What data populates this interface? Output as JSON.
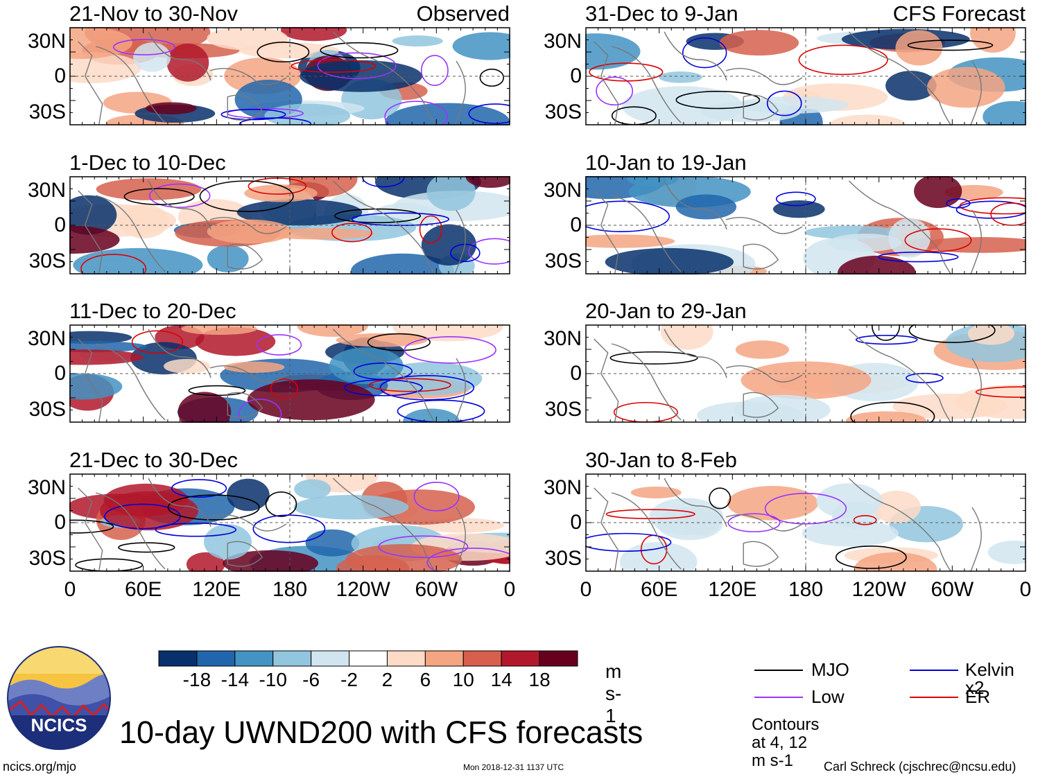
{
  "main_title": "10-day UWND200 with CFS forecasts",
  "footer": {
    "left": "ncics.org/mjo",
    "center": "Mon 2018-12-31 1137 UTC",
    "right": "Carl Schreck (cjschrec@ncsu.edu)"
  },
  "logo_text": "NCICS",
  "column_labels": {
    "observed": "Observed",
    "forecast": "CFS Forecast"
  },
  "panels": [
    {
      "title": "21-Nov to 30-Nov",
      "col": "observed",
      "row": 0
    },
    {
      "title": "1-Dec to 10-Dec",
      "col": "observed",
      "row": 1
    },
    {
      "title": "11-Dec to 20-Dec",
      "col": "observed",
      "row": 2
    },
    {
      "title": "21-Dec to 30-Dec",
      "col": "observed",
      "row": 3
    },
    {
      "title": "31-Dec to 9-Jan",
      "col": "forecast",
      "row": 0
    },
    {
      "title": "10-Jan to 19-Jan",
      "col": "forecast",
      "row": 1
    },
    {
      "title": "20-Jan to 29-Jan",
      "col": "forecast",
      "row": 2
    },
    {
      "title": "30-Jan to 8-Feb",
      "col": "forecast",
      "row": 3
    }
  ],
  "chart_data": {
    "type": "heatmap",
    "variable": "200-hPa zonal wind anomaly",
    "lat_labels": [
      "30N",
      "0",
      "30S"
    ],
    "lon_labels": [
      "0",
      "60E",
      "120E",
      "180",
      "120W",
      "60W",
      "0"
    ],
    "colorbar": {
      "units": "m s-1",
      "tick_labels": [
        "-18",
        "-14",
        "-10",
        "-6",
        "-2",
        "2",
        "6",
        "10",
        "14",
        "18"
      ],
      "colors": [
        "#08306b",
        "#2166ac",
        "#4393c3",
        "#92c5de",
        "#d1e5f0",
        "#ffffff",
        "#fddbc7",
        "#f4a582",
        "#d6604d",
        "#b2182b",
        "#67001f"
      ]
    },
    "legend": [
      {
        "label": "MJO",
        "color": "#000000"
      },
      {
        "label": "Kelvin x2",
        "color": "#0000dd"
      },
      {
        "label": "Low",
        "color": "#9933ff"
      },
      {
        "label": "ER",
        "color": "#dd0000"
      }
    ],
    "contour_note": "Contours at 4, 12 m s-1"
  }
}
